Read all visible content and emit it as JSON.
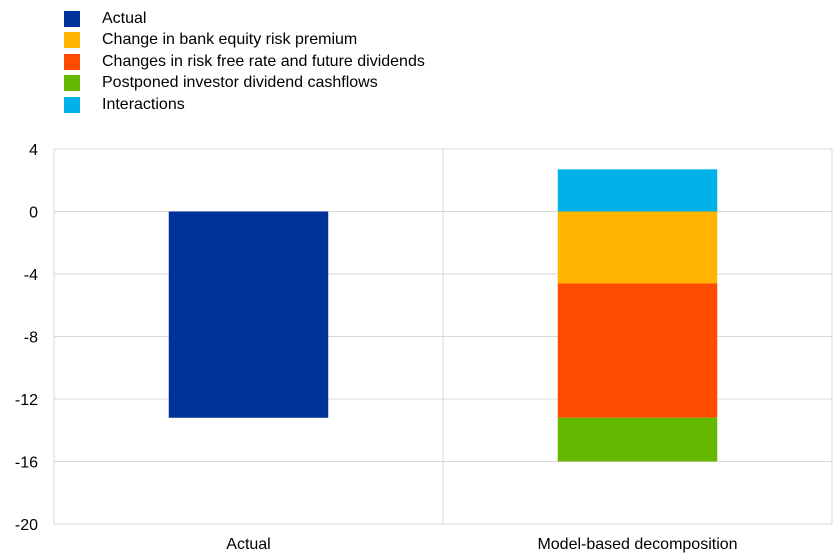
{
  "chart_data": {
    "type": "bar",
    "stacked": true,
    "categories": [
      "Actual",
      "Model-based decomposition"
    ],
    "series": [
      {
        "name": "Actual",
        "color": "#003399",
        "values": [
          -13.2,
          0
        ]
      },
      {
        "name": "Change in bank equity risk premium",
        "color": "#FFB400",
        "values": [
          0,
          -4.6
        ]
      },
      {
        "name": "Changes in risk free rate and future dividends",
        "color": "#FF4B00",
        "values": [
          0,
          -8.6
        ]
      },
      {
        "name": "Postponed investor dividend cashflows",
        "color": "#65B800",
        "values": [
          0,
          -2.8
        ]
      },
      {
        "name": "Interactions",
        "color": "#00B1EA",
        "values": [
          0,
          2.7
        ]
      }
    ],
    "title": "",
    "xlabel": "",
    "ylabel": "",
    "ylim": [
      -20,
      4
    ],
    "yticks": [
      "4",
      "0",
      "-4",
      "-8",
      "-12",
      "-16",
      "-20"
    ],
    "grid": true,
    "legend_position": "top-left"
  }
}
